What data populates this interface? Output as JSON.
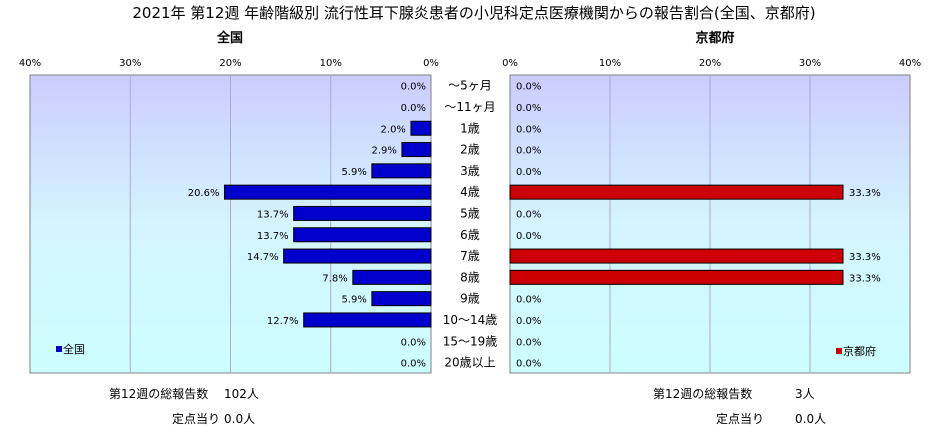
{
  "title": "2021年 第12週 年齢階級別 流行性耳下腺炎患者の小児科定点医療機関からの報告割合(全国、京都府)",
  "chart_data": [
    {
      "type": "bar",
      "orientation": "horizontal",
      "panel_title": "全国",
      "legend": "全国",
      "xlim": [
        0,
        40
      ],
      "x_direction": "reversed",
      "ticks": [
        "40%",
        "30%",
        "20%",
        "10%",
        "0%"
      ],
      "categories": [
        "～5ヶ月",
        "～11ヶ月",
        "1歳",
        "2歳",
        "3歳",
        "4歳",
        "5歳",
        "6歳",
        "7歳",
        "8歳",
        "9歳",
        "10～14歳",
        "15～19歳",
        "20歳以上"
      ],
      "values": [
        0.0,
        0.0,
        2.0,
        2.9,
        5.9,
        20.6,
        13.7,
        13.7,
        14.7,
        7.8,
        5.9,
        12.7,
        0.0,
        0.0
      ],
      "labels": [
        "0.0%",
        "0.0%",
        "2.0%",
        "2.9%",
        "5.9%",
        "20.6%",
        "13.7%",
        "13.7%",
        "14.7%",
        "7.8%",
        "5.9%",
        "12.7%",
        "0.0%",
        "0.0%"
      ],
      "color": "#0000cc",
      "grid": true
    },
    {
      "type": "bar",
      "orientation": "horizontal",
      "panel_title": "京都府",
      "legend": "京都府",
      "xlim": [
        0,
        40
      ],
      "ticks": [
        "0%",
        "10%",
        "20%",
        "30%",
        "40%"
      ],
      "categories": [
        "～5ヶ月",
        "～11ヶ月",
        "1歳",
        "2歳",
        "3歳",
        "4歳",
        "5歳",
        "6歳",
        "7歳",
        "8歳",
        "9歳",
        "10～14歳",
        "15～19歳",
        "20歳以上"
      ],
      "values": [
        0.0,
        0.0,
        0.0,
        0.0,
        0.0,
        33.3,
        0.0,
        0.0,
        33.3,
        33.3,
        0.0,
        0.0,
        0.0,
        0.0
      ],
      "labels": [
        "0.0%",
        "0.0%",
        "0.0%",
        "0.0%",
        "0.0%",
        "33.3%",
        "0.0%",
        "0.0%",
        "33.3%",
        "33.3%",
        "0.0%",
        "0.0%",
        "0.0%",
        "0.0%"
      ],
      "color": "#cc0000",
      "grid": true
    }
  ],
  "footer": {
    "national_total_label": "第12週の総報告数",
    "national_total_value": "102人",
    "national_per_label": "定点当り",
    "national_per_value": "0.0人",
    "kyoto_total_label": "第12週の総報告数",
    "kyoto_total_value": "3人",
    "kyoto_per_label": "定点当り",
    "kyoto_per_value": "0.0人"
  },
  "colors": {
    "plot_top": "#ccccff",
    "plot_bottom": "#ccffff",
    "national_bar": "#0000cc",
    "kyoto_bar": "#cc0000",
    "grid": "#aaaacc"
  }
}
